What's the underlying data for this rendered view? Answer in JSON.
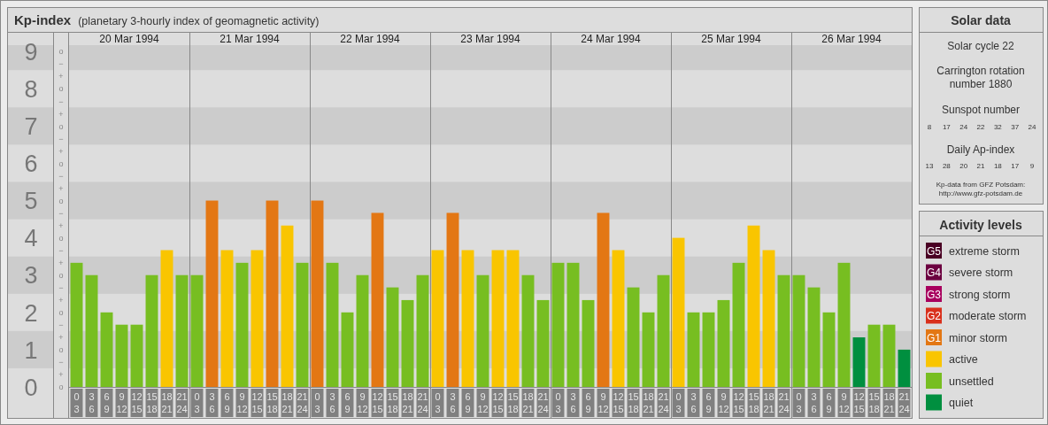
{
  "chart_data": {
    "type": "bar",
    "title": "Kp-index",
    "subtitle": "(planetary 3-hourly index of geomagnetic activity)",
    "legend_title": "Activity levels",
    "legend": "right",
    "categories": [
      "0\n3",
      "3\n6",
      "6\n9",
      "9\n12",
      "12\n15",
      "15\n18",
      "18\n21",
      "21\n24",
      "0\n3",
      "3\n6",
      "6\n9",
      "9\n12",
      "12\n15",
      "15\n18",
      "18\n21",
      "21\n24",
      "0\n3",
      "3\n6",
      "6\n9",
      "9\n12",
      "12\n15",
      "15\n18",
      "18\n21",
      "21\n24",
      "0\n3",
      "3\n6",
      "6\n9",
      "9\n12",
      "12\n15",
      "15\n18",
      "18\n21",
      "21\n24",
      "0\n3",
      "3\n6",
      "6\n9",
      "9\n12",
      "12\n15",
      "15\n18",
      "18\n21",
      "21\n24",
      "0\n3",
      "3\n6",
      "6\n9",
      "9\n12",
      "12\n15",
      "15\n18",
      "18\n21",
      "21\n24",
      "0\n3",
      "3\n6",
      "6\n9",
      "9\n12",
      "12\n15",
      "15\n18",
      "18\n21",
      "21\n24"
    ],
    "series": [
      {
        "name": "extreme storm",
        "color": "#4a0024",
        "values": [
          null,
          null,
          null,
          null,
          null,
          null,
          null,
          null,
          null,
          null,
          null,
          null,
          null,
          null,
          null,
          null,
          null,
          null,
          null,
          null,
          null,
          null,
          null,
          null,
          null,
          null,
          null,
          null,
          null,
          null,
          null,
          null,
          null,
          null,
          null,
          null,
          null,
          null,
          null,
          null,
          null,
          null,
          null,
          null,
          null,
          null,
          null,
          null,
          null,
          null,
          null,
          null,
          null,
          null,
          null,
          null
        ]
      },
      {
        "name": "severe storm",
        "color": "#6c0040",
        "values": [
          null,
          null,
          null,
          null,
          null,
          null,
          null,
          null,
          null,
          null,
          null,
          null,
          null,
          null,
          null,
          null,
          null,
          null,
          null,
          null,
          null,
          null,
          null,
          null,
          null,
          null,
          null,
          null,
          null,
          null,
          null,
          null,
          null,
          null,
          null,
          null,
          null,
          null,
          null,
          null,
          null,
          null,
          null,
          null,
          null,
          null,
          null,
          null,
          null,
          null,
          null,
          null,
          null,
          null,
          null,
          null
        ]
      },
      {
        "name": "strong storm",
        "color": "#a8005e",
        "values": [
          null,
          null,
          null,
          null,
          null,
          null,
          null,
          null,
          null,
          null,
          null,
          null,
          null,
          null,
          null,
          null,
          null,
          null,
          null,
          null,
          null,
          null,
          null,
          null,
          null,
          null,
          null,
          null,
          null,
          null,
          null,
          null,
          null,
          null,
          null,
          null,
          null,
          null,
          null,
          null,
          null,
          null,
          null,
          null,
          null,
          null,
          null,
          null,
          null,
          null,
          null,
          null,
          null,
          null,
          null,
          null
        ]
      },
      {
        "name": "moderate storm",
        "color": "#d9301c",
        "values": [
          null,
          null,
          null,
          null,
          null,
          null,
          null,
          null,
          null,
          null,
          null,
          null,
          null,
          null,
          null,
          null,
          null,
          null,
          null,
          null,
          null,
          null,
          null,
          null,
          null,
          null,
          null,
          null,
          null,
          null,
          null,
          null,
          null,
          null,
          null,
          null,
          null,
          null,
          null,
          null,
          null,
          null,
          null,
          null,
          null,
          null,
          null,
          null,
          null,
          null,
          null,
          null,
          null,
          null,
          null,
          null
        ]
      },
      {
        "name": "minor storm",
        "color": "#e37714",
        "values": [
          null,
          null,
          null,
          null,
          null,
          null,
          null,
          null,
          null,
          5,
          null,
          null,
          null,
          5,
          null,
          null,
          5,
          null,
          null,
          null,
          4.67,
          null,
          null,
          null,
          null,
          4.67,
          null,
          null,
          null,
          null,
          null,
          null,
          null,
          null,
          null,
          4.67,
          null,
          null,
          null,
          null,
          null,
          null,
          null,
          null,
          null,
          null,
          null,
          null,
          null,
          null,
          null,
          null,
          null,
          null,
          null,
          null
        ]
      },
      {
        "name": "active",
        "color": "#f9c500",
        "values": [
          null,
          null,
          null,
          null,
          null,
          null,
          3.67,
          null,
          null,
          null,
          3.67,
          null,
          3.67,
          null,
          4.33,
          null,
          null,
          null,
          null,
          null,
          null,
          null,
          null,
          null,
          3.67,
          null,
          3.67,
          null,
          3.67,
          3.67,
          null,
          null,
          null,
          null,
          null,
          null,
          3.67,
          null,
          null,
          null,
          4,
          null,
          null,
          null,
          null,
          4.33,
          3.67,
          null,
          null,
          null,
          null,
          null,
          null,
          null,
          null,
          null
        ]
      },
      {
        "name": "unsettled",
        "color": "#77be21",
        "values": [
          3.33,
          3,
          2,
          1.67,
          1.67,
          3,
          null,
          3,
          3,
          null,
          null,
          3.33,
          null,
          null,
          null,
          3.33,
          null,
          3.33,
          2,
          3,
          null,
          2.67,
          2.33,
          3,
          null,
          null,
          null,
          3,
          null,
          null,
          3,
          2.33,
          3.33,
          3.33,
          2.33,
          null,
          null,
          2.67,
          2,
          3,
          null,
          2,
          2,
          2.33,
          3.33,
          null,
          null,
          3,
          3,
          2.67,
          2,
          3.33,
          null,
          1.67,
          1.67,
          null
        ]
      },
      {
        "name": "quiet",
        "color": "#008f3f",
        "values": [
          null,
          null,
          null,
          null,
          null,
          null,
          null,
          null,
          null,
          null,
          null,
          null,
          null,
          null,
          null,
          null,
          null,
          null,
          null,
          null,
          null,
          null,
          null,
          null,
          null,
          null,
          null,
          null,
          null,
          null,
          null,
          null,
          null,
          null,
          null,
          null,
          null,
          null,
          null,
          null,
          null,
          null,
          null,
          null,
          null,
          null,
          null,
          null,
          null,
          null,
          null,
          null,
          1.33,
          null,
          null,
          1
        ]
      }
    ],
    "ylim": [
      0,
      9.17
    ],
    "yticks": [
      0,
      1,
      2,
      3,
      4,
      5,
      6,
      7,
      8,
      9
    ],
    "bands": [
      {
        "axis": "y",
        "from": 0.5,
        "to": 1.5,
        "color": "#cccccc"
      },
      {
        "axis": "y",
        "from": 2.5,
        "to": 3.5,
        "color": "#cccccc"
      },
      {
        "axis": "y",
        "from": 4.5,
        "to": 5.5,
        "color": "#cccccc"
      },
      {
        "axis": "y",
        "from": 6.5,
        "to": 7.5,
        "color": "#cccccc"
      },
      {
        "axis": "y",
        "from": 8.5,
        "to": 9.17,
        "color": "#cccccc"
      }
    ],
    "annotations": [
      "20 Mar 1994",
      "21 Mar 1994",
      "22 Mar 1994",
      "23 Mar 1994",
      "24 Mar 1994",
      "25 Mar 1994",
      "26 Mar 1994",
      "Solar data",
      "Solar cycle 22",
      "Carrington rotation",
      "number 1880",
      "Sunspot number",
      "8 17 24 22 32 37 24",
      "Daily Ap-index",
      "13 28 20 21 18 17 9",
      "Kp-data from GFZ Potsdam:",
      "http://www.gfz-potsdam.de",
      "G5",
      "G4",
      "G3",
      "G2",
      "G1",
      "o",
      "+",
      "−",
      "o",
      "+",
      "−",
      "o",
      "+",
      "−",
      "o",
      "+",
      "−",
      "o",
      "+",
      "−",
      "o",
      "+",
      "−",
      "o",
      "+",
      "−",
      "o",
      "+",
      "−",
      "o",
      "+",
      "−",
      "o"
    ]
  }
}
